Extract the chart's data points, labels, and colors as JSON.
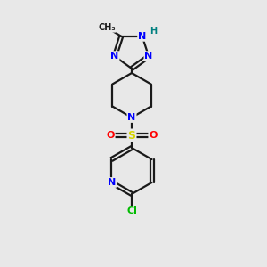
{
  "background_color": "#e8e8e8",
  "bond_color": "#1a1a1a",
  "atom_colors": {
    "N": "#0000ff",
    "O": "#ff0000",
    "S": "#d4d400",
    "Cl": "#00bb00",
    "H": "#008080",
    "C": "#1a1a1a"
  },
  "line_width": 1.6
}
